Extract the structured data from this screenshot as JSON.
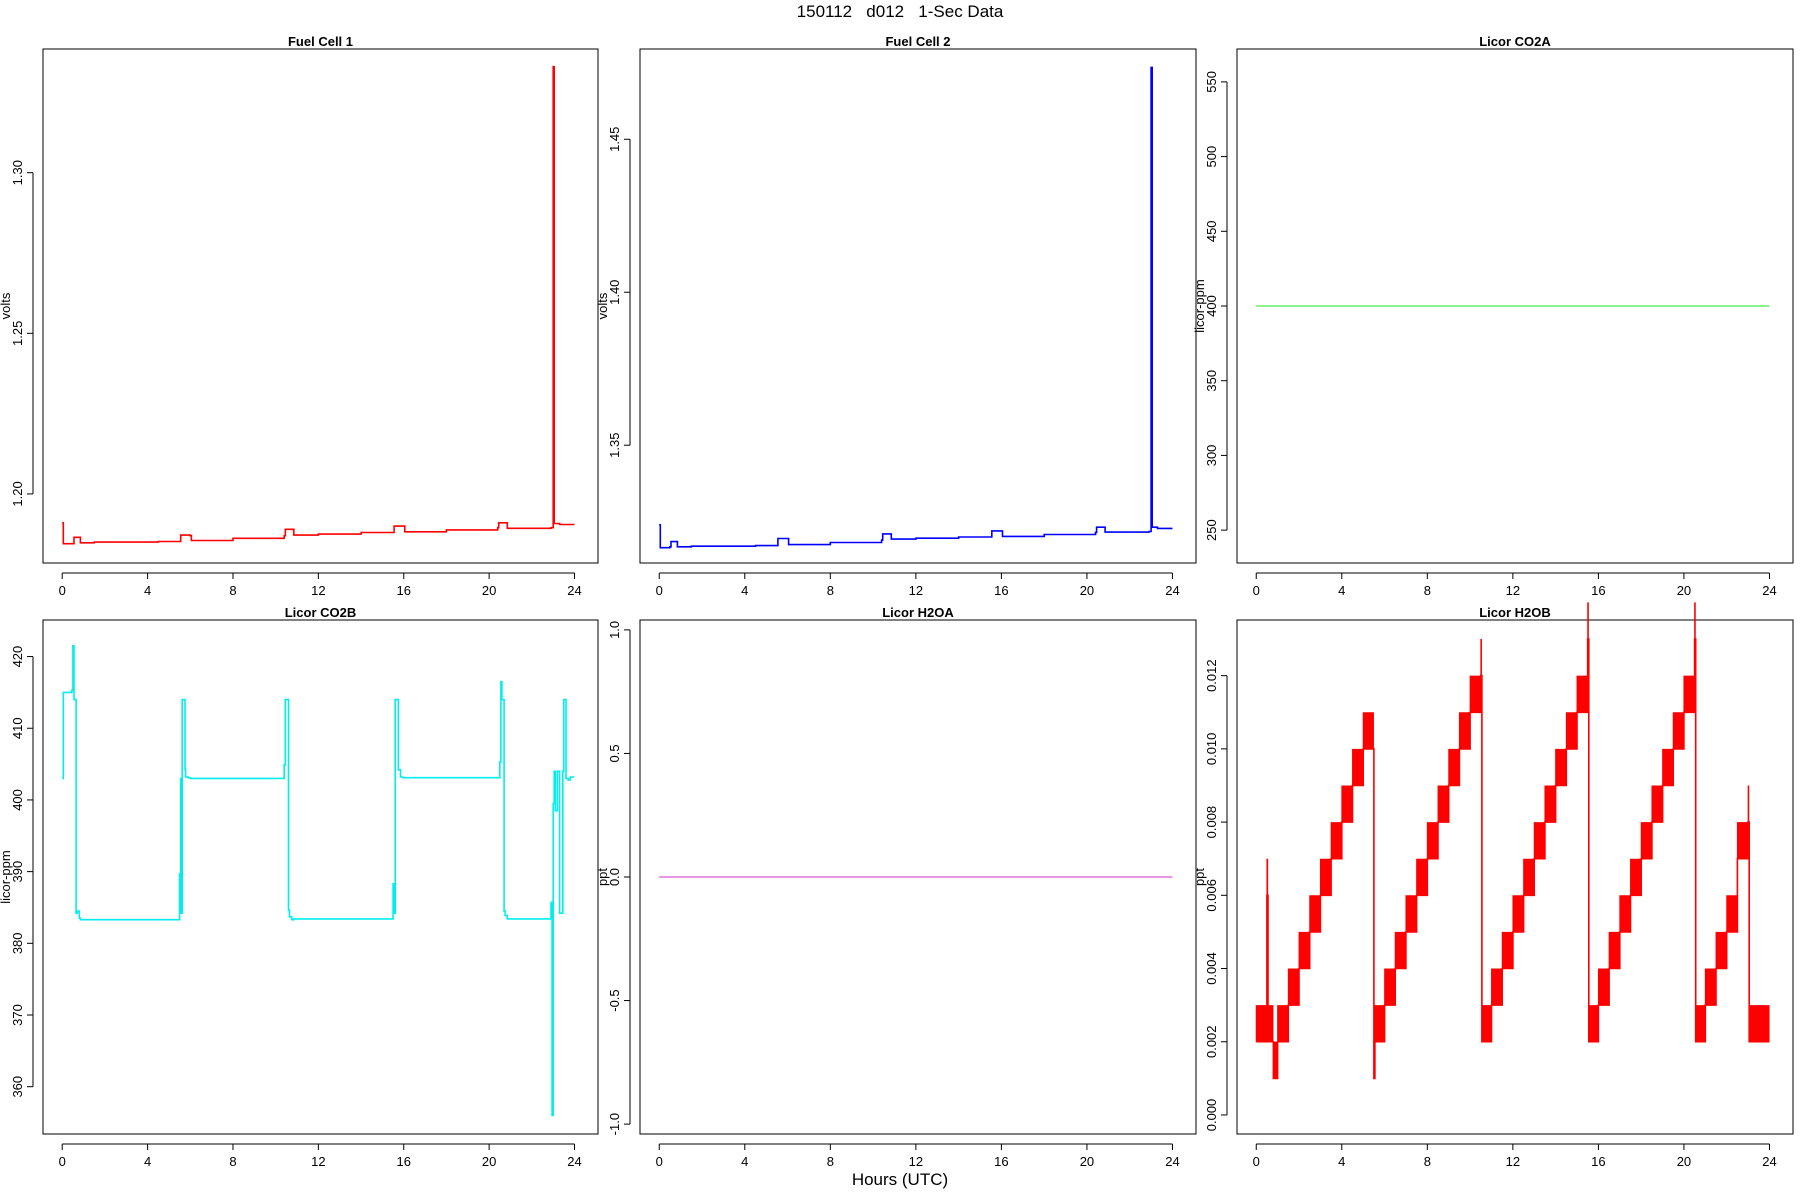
{
  "figure": {
    "title": "150112   d012   1-Sec Data",
    "xlabel": "Hours (UTC)"
  },
  "chart_data": [
    {
      "type": "line",
      "title": "Fuel Cell 1",
      "ylabel": "volts",
      "color": "#ff0000",
      "xlim": [
        -0.9,
        25.1
      ],
      "ylim": [
        1.1785,
        1.3385
      ],
      "xticks": [
        0,
        4,
        8,
        12,
        16,
        20,
        24
      ],
      "yticks": [
        1.2,
        1.25,
        1.3
      ],
      "ytick_labels": [
        "1.20",
        "1.25",
        "1.30"
      ],
      "x": [
        0,
        0.05,
        0.06,
        0.5,
        0.55,
        0.8,
        0.85,
        1.5,
        3,
        4.5,
        5.5,
        5.55,
        6,
        6.05,
        8,
        10.4,
        10.45,
        10.8,
        10.85,
        12,
        14,
        15.5,
        15.55,
        16,
        16.05,
        18,
        20.4,
        20.45,
        20.8,
        20.85,
        22.9,
        22.95,
        23.0,
        23.05,
        23.3,
        24
      ],
      "y": [
        1.191,
        1.1845,
        1.1845,
        1.1845,
        1.1865,
        1.1865,
        1.1848,
        1.185,
        1.185,
        1.1852,
        1.1852,
        1.1872,
        1.187,
        1.1855,
        1.1862,
        1.187,
        1.189,
        1.189,
        1.1872,
        1.1875,
        1.188,
        1.188,
        1.19,
        1.19,
        1.1882,
        1.1888,
        1.1895,
        1.191,
        1.191,
        1.1893,
        1.1895,
        1.1895,
        1.333,
        1.1908,
        1.1905,
        1.1905
      ]
    },
    {
      "type": "line",
      "title": "Fuel Cell 2",
      "ylabel": "volts",
      "color": "#0000ff",
      "xlim": [
        -0.9,
        25.1
      ],
      "ylim": [
        1.3115,
        1.4795
      ],
      "xticks": [
        0,
        4,
        8,
        12,
        16,
        20,
        24
      ],
      "yticks": [
        1.35,
        1.4,
        1.45
      ],
      "ytick_labels": [
        "1.35",
        "1.40",
        "1.45"
      ],
      "x": [
        0,
        0.05,
        0.06,
        0.5,
        0.55,
        0.8,
        0.85,
        1.5,
        3,
        4.5,
        5.5,
        5.55,
        6,
        6.05,
        8,
        10.4,
        10.45,
        10.8,
        10.85,
        12,
        14,
        15.5,
        15.55,
        16,
        16.05,
        18,
        20.4,
        20.45,
        20.8,
        20.85,
        22.9,
        22.95,
        23.0,
        23.05,
        23.3,
        24
      ],
      "y": [
        1.324,
        1.3165,
        1.3165,
        1.3168,
        1.3185,
        1.3185,
        1.3168,
        1.317,
        1.317,
        1.3172,
        1.3172,
        1.3195,
        1.3195,
        1.3175,
        1.3182,
        1.319,
        1.321,
        1.321,
        1.3193,
        1.3196,
        1.32,
        1.32,
        1.322,
        1.322,
        1.3202,
        1.3208,
        1.3215,
        1.3232,
        1.3232,
        1.3216,
        1.3218,
        1.3218,
        1.4735,
        1.3232,
        1.3228,
        1.3228
      ]
    },
    {
      "type": "line",
      "title": "Licor CO2A",
      "ylabel": "licor-ppm",
      "color": "#66ee66",
      "xlim": [
        -0.9,
        25.1
      ],
      "ylim": [
        228,
        572
      ],
      "xticks": [
        0,
        4,
        8,
        12,
        16,
        20,
        24
      ],
      "yticks": [
        250,
        300,
        350,
        400,
        450,
        500,
        550
      ],
      "ytick_labels": [
        "250",
        "300",
        "350",
        "400",
        "450",
        "500",
        "550"
      ],
      "x": [
        0,
        24
      ],
      "y": [
        400,
        400
      ]
    },
    {
      "type": "line",
      "title": "Licor CO2B",
      "ylabel": "licor-ppm",
      "color": "#00eeee",
      "xlim": [
        -0.9,
        25.1
      ],
      "ylim": [
        353.4,
        425.1
      ],
      "xticks": [
        0,
        4,
        8,
        12,
        16,
        20,
        24
      ],
      "yticks": [
        360,
        370,
        380,
        390,
        400,
        410,
        420
      ],
      "ytick_labels": [
        "360",
        "370",
        "380",
        "390",
        "400",
        "410",
        "420"
      ],
      "x": [
        0,
        0.05,
        0.4,
        0.45,
        0.5,
        0.55,
        0.6,
        0.65,
        0.7,
        0.8,
        0.85,
        5.5,
        5.52,
        5.55,
        5.6,
        5.62,
        5.7,
        5.75,
        5.78,
        5.9,
        6.0,
        10.4,
        10.45,
        10.5,
        10.6,
        10.65,
        10.75,
        10.85,
        15.5,
        15.55,
        15.6,
        15.7,
        15.75,
        15.85,
        15.95,
        16.05,
        20.5,
        20.55,
        20.6,
        20.7,
        20.75,
        20.85,
        22.9,
        22.95,
        23.0,
        23.05,
        23.1,
        23.2,
        23.3,
        23.4,
        23.45,
        23.5,
        23.55,
        23.6,
        23.7,
        23.8,
        24
      ],
      "y": [
        403,
        415,
        415,
        415.3,
        421.5,
        414,
        414,
        384.2,
        384.5,
        383.5,
        383.3,
        389.7,
        384.2,
        403,
        384.2,
        414,
        414,
        404.3,
        403.2,
        403.1,
        403,
        404.9,
        414,
        414,
        384.6,
        383.7,
        383.3,
        383.4,
        388.3,
        384.2,
        414,
        414,
        404.2,
        403.2,
        403.1,
        403.1,
        405.3,
        416.5,
        414,
        384.5,
        383.9,
        383.4,
        385.7,
        356,
        399.5,
        404,
        398.5,
        404,
        384.2,
        384.2,
        404,
        414,
        414,
        403,
        402.8,
        403.2,
        403.2
      ]
    },
    {
      "type": "line",
      "title": "Licor H2OA",
      "ylabel": "ppt",
      "color": "#dd77dd",
      "xlim": [
        -0.9,
        25.1
      ],
      "ylim": [
        -1.04,
        1.04
      ],
      "xticks": [
        0,
        4,
        8,
        12,
        16,
        20,
        24
      ],
      "yticks": [
        -1.0,
        -0.5,
        0.0,
        0.5,
        1.0
      ],
      "ytick_labels": [
        "-1.0",
        "-0.5",
        "0.0",
        "0.5",
        "1.0"
      ],
      "x": [
        0,
        24
      ],
      "y": [
        0,
        0
      ]
    },
    {
      "type": "line",
      "title": "Licor H2OB",
      "ylabel": "ppt",
      "color": "#ff0000",
      "xlim": [
        -0.9,
        25.1
      ],
      "ylim": [
        -0.00052,
        0.01352
      ],
      "xticks": [
        0,
        4,
        8,
        12,
        16,
        20,
        24
      ],
      "yticks": [
        0.0,
        0.002,
        0.004,
        0.006,
        0.008,
        0.01,
        0.012
      ],
      "ytick_labels": [
        "0.000",
        "0.002",
        "0.004",
        "0.006",
        "0.008",
        "0.010",
        "0.012"
      ],
      "x": [
        0,
        0.5,
        0.55,
        0.8,
        1.0,
        1.5,
        2.0,
        2.5,
        3.0,
        3.5,
        4.0,
        4.5,
        5.0,
        5.5,
        5.55,
        6.0,
        6.5,
        7.0,
        7.5,
        8.0,
        8.5,
        9.0,
        9.5,
        10.0,
        10.5,
        10.55,
        11.0,
        11.5,
        12.0,
        12.5,
        13.0,
        13.5,
        14.0,
        14.5,
        15.0,
        15.5,
        15.55,
        16.0,
        16.5,
        17.0,
        17.5,
        18.0,
        18.5,
        19.0,
        19.5,
        20.0,
        20.5,
        20.55,
        21.0,
        21.5,
        22.0,
        22.5,
        23.0,
        23.05,
        24
      ],
      "y": [
        0.002,
        0.006,
        0.002,
        0.001,
        0.002,
        0.003,
        0.004,
        0.005,
        0.006,
        0.007,
        0.008,
        0.009,
        0.01,
        0.001,
        0.002,
        0.003,
        0.004,
        0.005,
        0.006,
        0.007,
        0.008,
        0.009,
        0.01,
        0.011,
        0.012,
        0.002,
        0.003,
        0.004,
        0.005,
        0.006,
        0.007,
        0.008,
        0.009,
        0.01,
        0.011,
        0.013,
        0.002,
        0.003,
        0.004,
        0.005,
        0.006,
        0.007,
        0.008,
        0.009,
        0.01,
        0.011,
        0.013,
        0.002,
        0.003,
        0.004,
        0.005,
        0.007,
        0.008,
        0.002,
        0.002
      ],
      "noise": 0.001
    }
  ]
}
